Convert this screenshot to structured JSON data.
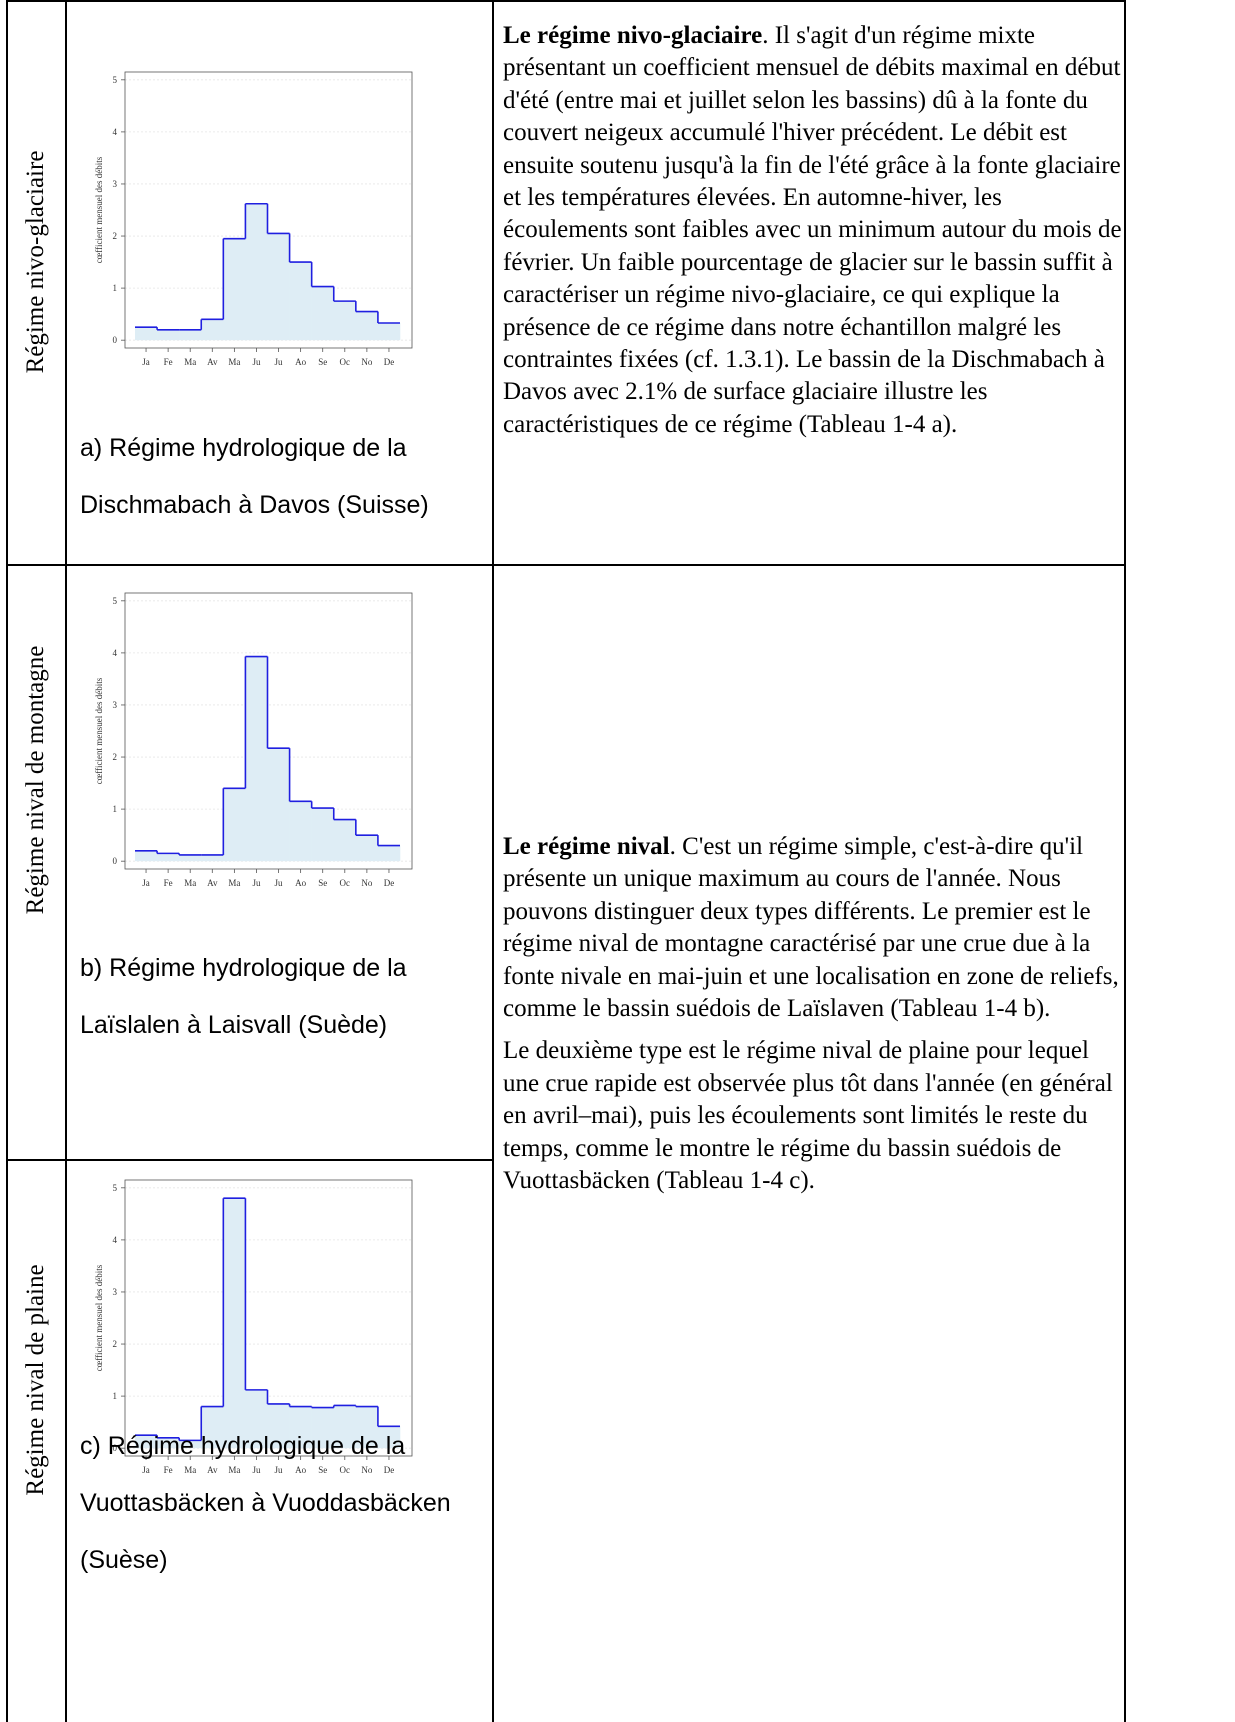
{
  "rows": [
    {
      "label": "Régime nivo-glaciaire",
      "chart": {
        "type": "step",
        "ylabel": "cœfficient mensuel des débits",
        "categories": [
          "Ja",
          "Fe",
          "Ma",
          "Av",
          "Ma",
          "Ju",
          "Ju",
          "Ao",
          "Se",
          "Oc",
          "No",
          "De"
        ],
        "values": [
          0.25,
          0.2,
          0.2,
          0.4,
          1.95,
          2.62,
          2.05,
          1.5,
          1.03,
          0.75,
          0.55,
          0.33
        ],
        "ylim": [
          -0.15,
          5.15
        ],
        "yticks": [
          0,
          1,
          2,
          3,
          4,
          5
        ],
        "color": "#1f1fe0",
        "fill": "#deedf5",
        "grid": true
      },
      "caption": "a) Régime hydrologique de la Dischmabach à Davos (Suisse)"
    },
    {
      "label": "Régime nival de montagne",
      "chart": {
        "type": "step",
        "ylabel": "cœfficient mensuel des débits",
        "categories": [
          "Ja",
          "Fe",
          "Ma",
          "Av",
          "Ma",
          "Ju",
          "Ju",
          "Ao",
          "Se",
          "Oc",
          "No",
          "De"
        ],
        "values": [
          0.2,
          0.15,
          0.12,
          0.12,
          1.4,
          3.93,
          2.17,
          1.15,
          1.02,
          0.8,
          0.5,
          0.3
        ],
        "ylim": [
          -0.15,
          5.15
        ],
        "yticks": [
          0,
          1,
          2,
          3,
          4,
          5
        ],
        "color": "#1f1fe0",
        "fill": "#deedf5",
        "grid": true
      },
      "caption": "b) Régime hydrologique de la Laïslalen à Laisvall (Suède)"
    },
    {
      "label": "Régime nival de plaine",
      "chart": {
        "type": "step",
        "ylabel": "cœfficient mensuel des débits",
        "categories": [
          "Ja",
          "Fe",
          "Ma",
          "Av",
          "Ma",
          "Ju",
          "Ju",
          "Ao",
          "Se",
          "Oc",
          "No",
          "De"
        ],
        "values": [
          0.25,
          0.2,
          0.15,
          0.8,
          4.8,
          1.12,
          0.85,
          0.8,
          0.78,
          0.82,
          0.8,
          0.42
        ],
        "ylim": [
          -0.15,
          5.15
        ],
        "yticks": [
          0,
          1,
          2,
          3,
          4,
          5
        ],
        "color": "#1f1fe0",
        "fill": "#deedf5",
        "grid": true
      },
      "caption": "c) Régime hydrologique de la Vuottasbäcken à Vuoddasbäcken (Suèse)"
    }
  ],
  "descriptions": [
    {
      "lead": "Le régime nivo-glaciaire",
      "text": ". Il s'agit d'un régime mixte présentant un coefficient mensuel de débits maximal en début d'été (entre mai et juillet selon les bassins) dû à la fonte du couvert neigeux accumulé l'hiver précédent. Le débit est ensuite soutenu jusqu'à la fin de l'été grâce à la fonte glaciaire et les températures élevées. En automne-hiver, les écoulements sont faibles avec un minimum autour du mois de février. Un faible pourcentage de glacier sur le bassin suffit à caractériser un régime nivo-glaciaire, ce qui explique la présence de ce régime dans notre échantillon malgré les contraintes fixées (cf. 1.3.1). Le bassin de la Dischmabach à Davos avec 2.1% de surface glaciaire illustre  les caractéristiques de ce régime (Tableau 1-4 a)."
    },
    {
      "lead": "Le régime nival",
      "text": ". C'est un régime simple, c'est-à-dire qu'il présente un unique maximum au cours de l'année. Nous pouvons distinguer deux types différents. Le premier est le régime nival de montagne caractérisé par une crue due à la fonte nivale en mai-juin et une localisation en zone de reliefs, comme le bassin suédois de Laïslaven (Tableau 1-4 b).",
      "text2": "Le deuxième type est le régime nival de plaine pour lequel une crue rapide est observée plus tôt dans l'année (en général en avril–mai), puis les écoulements sont limités le reste du temps, comme le montre le régime du bassin suédois de Vuottasbäcken (Tableau 1-4 c)."
    }
  ]
}
